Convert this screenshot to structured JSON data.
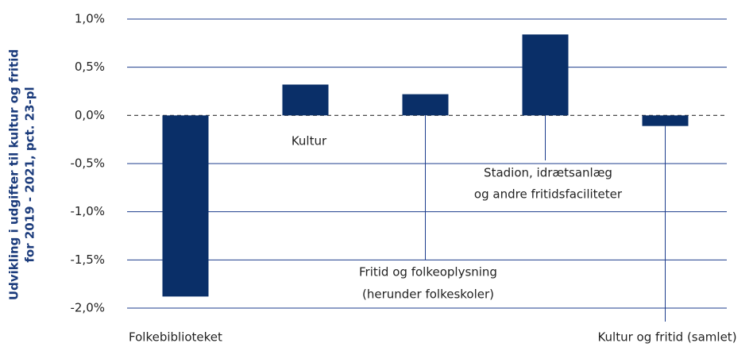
{
  "chart_data": {
    "type": "bar",
    "y_label": [
      "Udvikling i udgifter til kultur og fritid",
      "for 2019 - 2021, pct. 23-pl"
    ],
    "categories": [
      [
        "Folkebiblioteket"
      ],
      [
        "Kultur"
      ],
      [
        "Fritid og folkeoplysning",
        "(herunder folkeskoler)"
      ],
      [
        "Stadion, idrætsanlæg",
        "og andre fritidsfaciliteter"
      ],
      [
        "Kultur og fritid (samlet)"
      ]
    ],
    "values": [
      -1.88,
      0.32,
      0.22,
      0.84,
      -0.11
    ],
    "color": "#0a2f68",
    "ylim": [
      -2.0,
      1.0
    ],
    "yticks": [
      {
        "value": -2.0,
        "label": "-2,0%"
      },
      {
        "value": -1.5,
        "label": "-1,5%"
      },
      {
        "value": -1.0,
        "label": "-1,0%"
      },
      {
        "value": -0.5,
        "label": "-0,5%"
      },
      {
        "value": 0,
        "label": "0,0%"
      },
      {
        "value": 0.5,
        "label": "0,5%"
      },
      {
        "value": 1.0,
        "label": "1,0%"
      }
    ],
    "grid": true
  }
}
